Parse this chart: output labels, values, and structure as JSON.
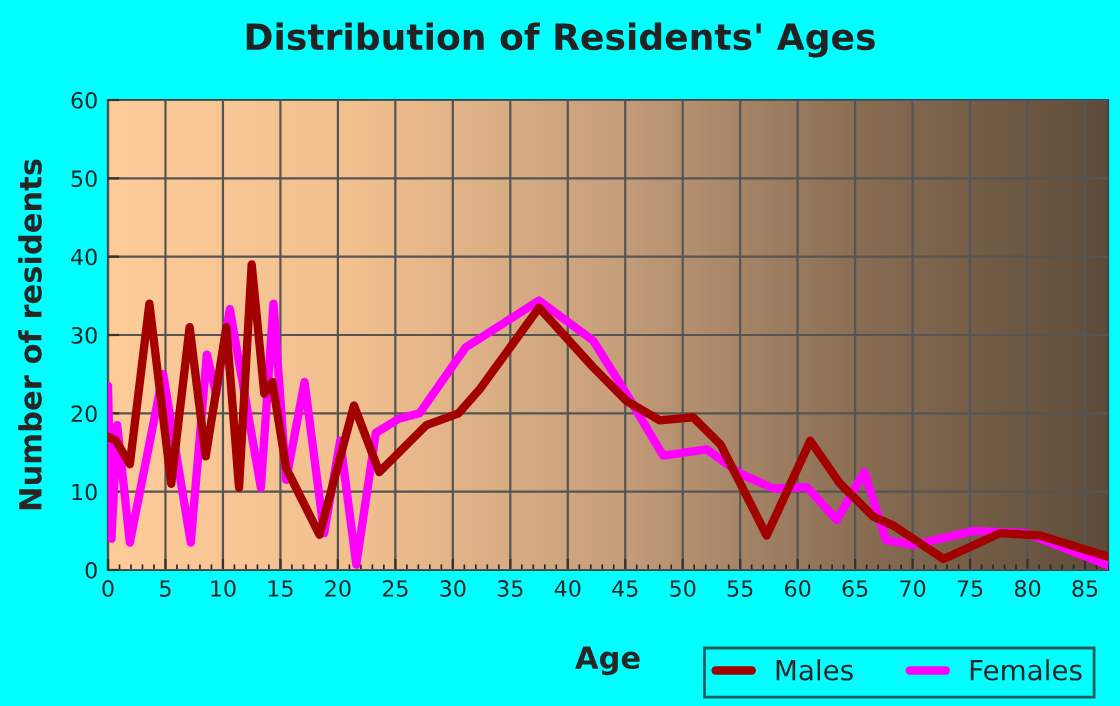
{
  "chart_data": {
    "type": "line",
    "title": "Distribution of Residents' Ages",
    "xlabel": "Age",
    "ylabel": "Number of residents",
    "xlim": [
      0,
      87
    ],
    "xticks": [
      0,
      5,
      10,
      15,
      20,
      25,
      30,
      35,
      40,
      45,
      50,
      55,
      60,
      65,
      70,
      75,
      80,
      85
    ],
    "ylim": [
      0,
      60
    ],
    "yticks": [
      0,
      10,
      20,
      30,
      40,
      50,
      60
    ],
    "grid": true,
    "legend": "bottom right",
    "marker": "none",
    "line_style": "solid",
    "series": [
      {
        "name": "Males",
        "color": "#a30000",
        "x": [
          0,
          0.7,
          1.9,
          3.6,
          5.5,
          7.1,
          8.5,
          10.3,
          11.4,
          12.5,
          13.6,
          14.3,
          15.5,
          18.4,
          21.4,
          23.6,
          27.7,
          30.5,
          32.3,
          37.5,
          42.2,
          45.1,
          48.0,
          50.9,
          53.3,
          57.3,
          61.1,
          63.7,
          66.6,
          68.3,
          72.7,
          77.6,
          81.1,
          87
        ],
        "values": [
          17,
          16.5,
          13.5,
          34,
          11,
          31,
          14.5,
          31,
          10.5,
          39,
          22.5,
          24,
          13,
          4.5,
          21,
          12.5,
          18.5,
          20,
          23,
          33.5,
          25.9,
          21.6,
          19.1,
          19.5,
          16,
          4.4,
          16.5,
          11,
          6.8,
          5.7,
          1.4,
          4.7,
          4.4,
          1.7
        ]
      },
      {
        "name": "Females",
        "color": "#ff00ff",
        "x": [
          0,
          0.3,
          0.8,
          1.9,
          4.8,
          7.2,
          8.6,
          9.4,
          10.6,
          13.3,
          14.4,
          15.5,
          17.1,
          18.8,
          20.2,
          21.6,
          23.3,
          25.3,
          27.1,
          31.1,
          37.5,
          42.2,
          45.1,
          48.3,
          52.1,
          55,
          57.9,
          60.8,
          63.4,
          65.8,
          67.7,
          70.1,
          75.3,
          79.9,
          87
        ],
        "values": [
          23.5,
          4,
          18.5,
          3.5,
          25,
          3.5,
          27.5,
          22.5,
          33.3,
          10.5,
          34,
          11.5,
          24,
          4.7,
          16.5,
          0.7,
          17.5,
          19.3,
          20,
          28.4,
          34.4,
          29.3,
          22.5,
          14.6,
          15.4,
          12.3,
          10.4,
          10.6,
          6.4,
          12.5,
          3.8,
          3.2,
          5,
          4.7,
          0.6
        ]
      }
    ]
  }
}
